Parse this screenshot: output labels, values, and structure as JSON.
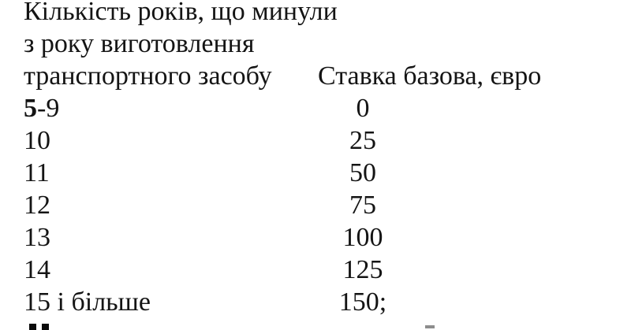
{
  "page": {
    "background_color": "#ffffff",
    "text_color": "#141414"
  },
  "table": {
    "header": {
      "col1_line1": "Кількість років, що минули",
      "col1_line2": "з року виготовлення",
      "col1_line3": "транспортного засобу",
      "col2": "Ставка базова, євро"
    },
    "rows": [
      {
        "years_bold": "5",
        "years": "-9",
        "rate": "0"
      },
      {
        "years_bold": "",
        "years": "10",
        "rate": "25"
      },
      {
        "years_bold": "",
        "years": "11",
        "rate": "50"
      },
      {
        "years_bold": "",
        "years": "12",
        "rate": "75"
      },
      {
        "years_bold": "",
        "years": "13",
        "rate": "100"
      },
      {
        "years_bold": "",
        "years": "14",
        "rate": "125"
      },
      {
        "years_bold": "",
        "years": "15 і більше",
        "rate": "150;"
      }
    ]
  }
}
